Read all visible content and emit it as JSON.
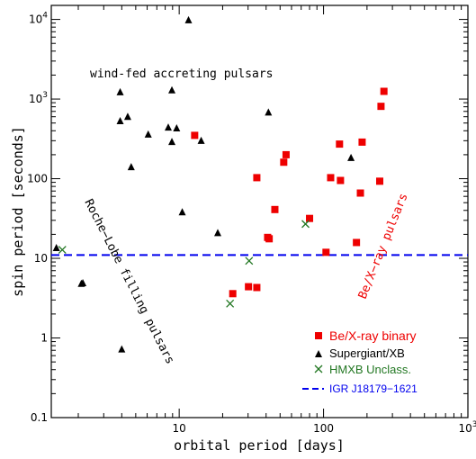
{
  "chart_data": {
    "type": "scatter",
    "xlabel": "orbital period [days]",
    "ylabel": "spin period [seconds]",
    "x_scale": "log",
    "y_scale": "log",
    "xlim": [
      1.3,
      1000
    ],
    "ylim": [
      0.1,
      15000
    ],
    "x_ticks": [
      {
        "value": 10,
        "label": "10"
      },
      {
        "value": 100,
        "label": "100"
      },
      {
        "value": 1000,
        "label": "10",
        "sup": "3"
      }
    ],
    "y_ticks": [
      {
        "value": 0.1,
        "label": "0.1"
      },
      {
        "value": 1,
        "label": "1"
      },
      {
        "value": 10,
        "label": "10"
      },
      {
        "value": 100,
        "label": "100"
      },
      {
        "value": 1000,
        "label": "10",
        "sup": "3"
      },
      {
        "value": 10000,
        "label": "10",
        "sup": "4"
      }
    ],
    "series": [
      {
        "name": "Be/X-ray binary",
        "marker": "square",
        "color": "#ee0000",
        "points": [
          [
            12.8,
            350
          ],
          [
            23.5,
            3.6
          ],
          [
            30.2,
            4.4
          ],
          [
            34.5,
            4.3
          ],
          [
            34.5,
            103
          ],
          [
            41,
            18.3
          ],
          [
            42,
            17.6
          ],
          [
            46,
            41
          ],
          [
            53,
            161
          ],
          [
            55,
            200
          ],
          [
            80,
            31.7
          ],
          [
            104,
            11.9
          ],
          [
            112,
            103
          ],
          [
            129,
            272
          ],
          [
            131,
            95
          ],
          [
            169,
            15.8
          ],
          [
            180,
            66
          ],
          [
            185,
            288
          ],
          [
            245,
            93
          ],
          [
            250,
            810
          ],
          [
            262,
            1250
          ]
        ]
      },
      {
        "name": "Supergiant/XB",
        "marker": "triangle",
        "color": "#000000",
        "points": [
          [
            1.41,
            13.5
          ],
          [
            2.1,
            4.8
          ],
          [
            2.15,
            4.9
          ],
          [
            3.9,
            1220
          ],
          [
            3.9,
            530
          ],
          [
            4.0,
            0.72
          ],
          [
            4.4,
            600
          ],
          [
            4.65,
            140
          ],
          [
            6.1,
            360
          ],
          [
            8.4,
            440
          ],
          [
            8.9,
            1290
          ],
          [
            8.9,
            290
          ],
          [
            9.6,
            430
          ],
          [
            10.5,
            38
          ],
          [
            11.6,
            9800
          ],
          [
            14.2,
            300
          ],
          [
            18.5,
            20.8
          ],
          [
            41.5,
            680
          ],
          [
            155,
            183
          ]
        ]
      },
      {
        "name": "HMXB Unclass.",
        "marker": "cross",
        "color": "#227722",
        "points": [
          [
            1.55,
            12.8
          ],
          [
            22.5,
            2.7
          ],
          [
            30.5,
            9.3
          ],
          [
            75,
            27
          ]
        ]
      }
    ],
    "reference_line": {
      "name": "IGR J18179−1621",
      "y": 11.0,
      "color": "#0000ee",
      "style": "dashed"
    },
    "annotations": [
      {
        "text": "wind-fed accreting pulsars",
        "color": "#000000"
      },
      {
        "text": "Roche−Lobe filling pulsars",
        "color": "#000000"
      },
      {
        "text": "Be/X−ray pulsars",
        "color": "#ee0000"
      }
    ],
    "legend_position": "bottom-right",
    "grid": false
  }
}
